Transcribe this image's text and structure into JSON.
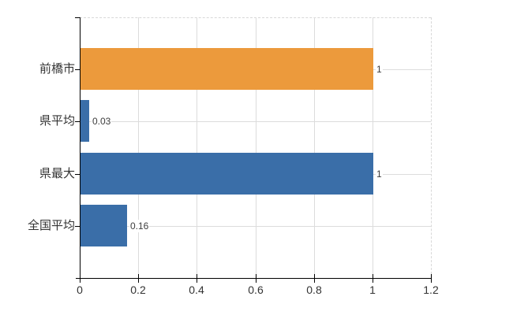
{
  "chart": {
    "background": "#ffffff",
    "axis_color": "#000000",
    "gridline_color": "#dcdcdc",
    "border_color": "#d8d8d8",
    "category_label_color": "#333333",
    "tick_label_color": "#333333",
    "value_label_color": "#3d3d3d"
  },
  "chart_data": {
    "type": "bar",
    "orientation": "horizontal",
    "title": "",
    "xlabel": "",
    "ylabel": "",
    "categories": [
      "前橋市",
      "県平均",
      "県最大",
      "全国平均"
    ],
    "values": [
      1,
      0.03,
      1,
      0.16
    ],
    "value_labels": [
      "1",
      "0.03",
      "1",
      "0.16"
    ],
    "bar_colors": [
      "#ec9a3c",
      "#3a6ea8",
      "#3a6ea8",
      "#3a6ea8"
    ],
    "xlim": [
      0,
      1.2
    ],
    "xtick_values": [
      0,
      0.2,
      0.4,
      0.6,
      0.8,
      1,
      1.2
    ],
    "xtick_labels": [
      "0",
      "0.2",
      "0.4",
      "0.6",
      "0.8",
      "1",
      "1.2"
    ],
    "grid": true,
    "grid_horizontal_at_category_centers": true,
    "legend": false
  }
}
